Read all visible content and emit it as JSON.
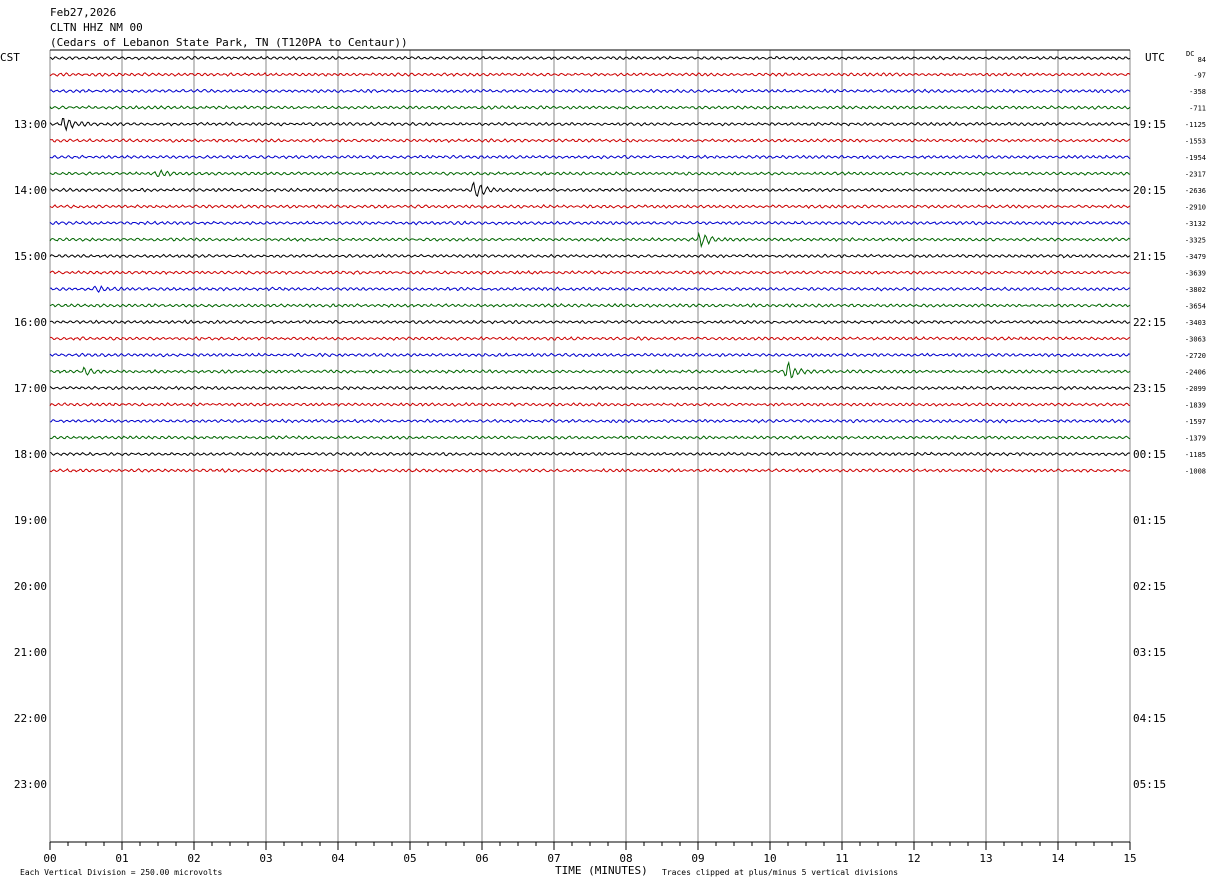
{
  "header": {
    "date": "Feb27,2026",
    "station": "CLTN HHZ NM 00",
    "location": "(Cedars of Lebanon State Park, TN (T120PA to Centaur))"
  },
  "left_tz": "CST",
  "right_tz": "UTC",
  "dc_label": "DC",
  "footer": {
    "scale": "Each Vertical Division =  250.00 microvolts",
    "xlabel": "TIME (MINUTES)",
    "clip": "Traces clipped at plus/minus 5 vertical divisions"
  },
  "chart_data": {
    "type": "line",
    "title": "CLTN HHZ NM 00",
    "xlabel": "TIME (MINUTES)",
    "xlim": [
      0,
      15
    ],
    "x_ticks": [
      "00",
      "01",
      "02",
      "03",
      "04",
      "05",
      "06",
      "07",
      "08",
      "09",
      "10",
      "11",
      "12",
      "13",
      "14",
      "15"
    ],
    "left_hours": [
      "13:00",
      "14:00",
      "15:00",
      "16:00",
      "17:00",
      "18:00",
      "19:00",
      "20:00",
      "21:00",
      "22:00",
      "23:00"
    ],
    "right_hours": [
      "19:15",
      "20:15",
      "21:15",
      "22:15",
      "23:15",
      "00:15",
      "01:15",
      "02:15",
      "03:15",
      "04:15",
      "05:15"
    ],
    "trace_colors": [
      "#000000",
      "#cc0000",
      "#0000cc",
      "#006600"
    ],
    "traces": [
      {
        "dc": "84"
      },
      {
        "dc": "-97"
      },
      {
        "dc": "-358"
      },
      {
        "dc": "-711"
      },
      {
        "dc": "-1125"
      },
      {
        "dc": "-1553"
      },
      {
        "dc": "-1954"
      },
      {
        "dc": "-2317"
      },
      {
        "dc": "-2636"
      },
      {
        "dc": "-2910"
      },
      {
        "dc": "-3132"
      },
      {
        "dc": "-3325"
      },
      {
        "dc": "-3479"
      },
      {
        "dc": "-3639"
      },
      {
        "dc": "-3802"
      },
      {
        "dc": "-3654"
      },
      {
        "dc": "-3403"
      },
      {
        "dc": "-3063"
      },
      {
        "dc": "-2720"
      },
      {
        "dc": "-2406"
      },
      {
        "dc": "-2099"
      },
      {
        "dc": "-1839"
      },
      {
        "dc": "-1597"
      },
      {
        "dc": "-1379"
      },
      {
        "dc": "-1185"
      },
      {
        "dc": "-1008"
      }
    ],
    "events": [
      {
        "trace": 4,
        "minute": 0.15,
        "amp": 10
      },
      {
        "trace": 7,
        "minute": 1.45,
        "amp": 5
      },
      {
        "trace": 8,
        "minute": 5.85,
        "amp": 14
      },
      {
        "trace": 11,
        "minute": 9.0,
        "amp": 9
      },
      {
        "trace": 14,
        "minute": 0.6,
        "amp": 4
      },
      {
        "trace": 19,
        "minute": 0.45,
        "amp": 4
      },
      {
        "trace": 19,
        "minute": 10.2,
        "amp": 12
      }
    ]
  }
}
